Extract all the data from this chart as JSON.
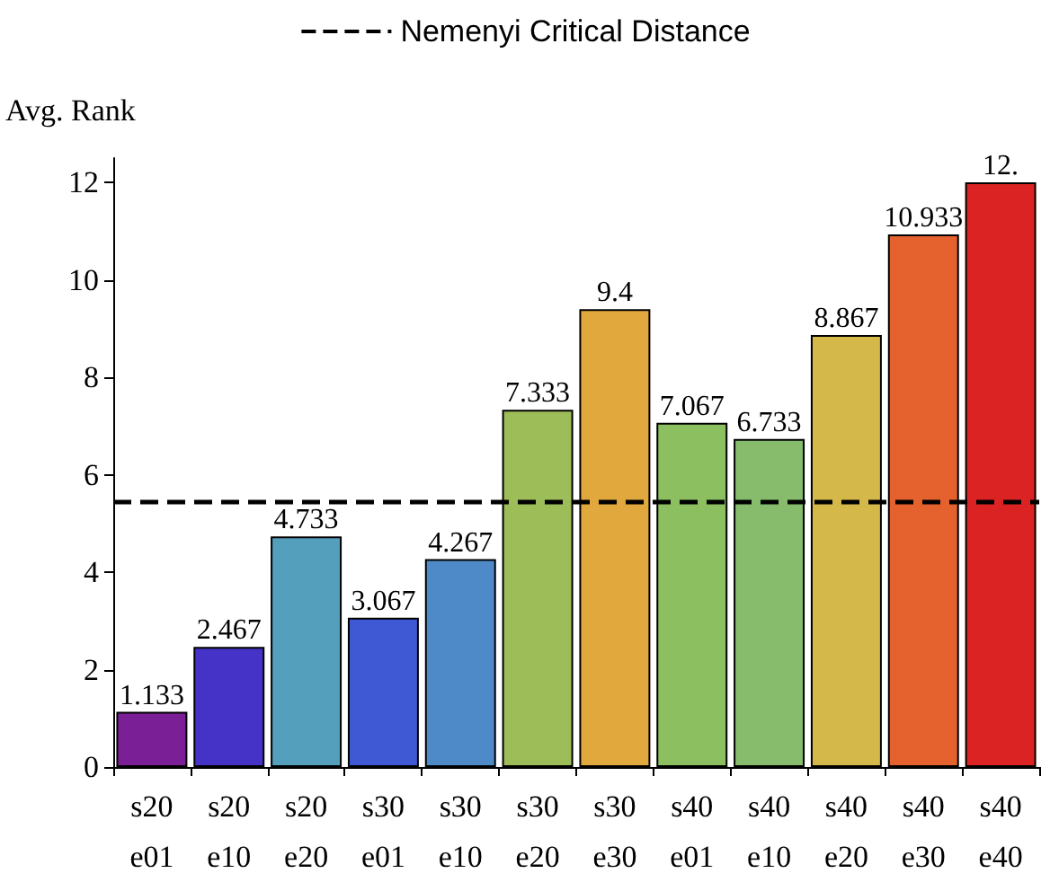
{
  "chart_data": {
    "type": "bar",
    "ylabel": "Avg. Rank",
    "categories": [
      "s20\ne01",
      "s20\ne10",
      "s20\ne20",
      "s30\ne01",
      "s30\ne10",
      "s30\ne20",
      "s30\ne30",
      "s40\ne01",
      "s40\ne10",
      "s40\ne20",
      "s40\ne30",
      "s40\ne40"
    ],
    "values": [
      1.133,
      2.467,
      4.733,
      3.067,
      4.267,
      7.333,
      9.4,
      7.067,
      6.733,
      8.867,
      10.933,
      12
    ],
    "value_labels": [
      "1.133",
      "2.467",
      "4.733",
      "3.067",
      "4.267",
      "7.333",
      "9.4",
      "7.067",
      "6.733",
      "8.867",
      "10.933",
      "12."
    ],
    "colors": [
      "#7b1f96",
      "#4433c6",
      "#549fbc",
      "#3f58d3",
      "#4f8ac8",
      "#9dbd59",
      "#e0a83d",
      "#8bbf60",
      "#86bc6b",
      "#d5b84a",
      "#e5612e",
      "#dc2323"
    ],
    "ylim": [
      0,
      12.5
    ],
    "yticks": [
      0,
      2,
      4,
      6,
      8,
      10,
      12
    ],
    "grid": false,
    "legend": "top",
    "ref_lines": [
      {
        "axis": "y",
        "value": 5.45,
        "label": "Nemenyi Critical Distance",
        "color": "#000000",
        "line_style": "dashed"
      }
    ]
  }
}
